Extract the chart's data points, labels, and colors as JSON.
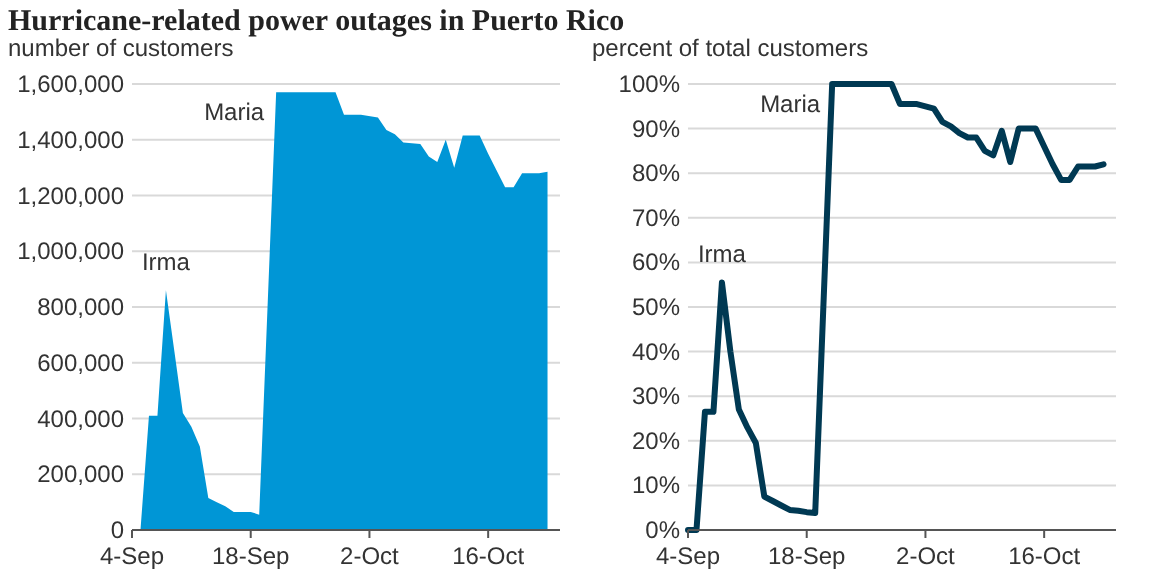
{
  "chart_data": [
    {
      "type": "area",
      "title": "Hurricane-related power outages in Puerto Rico",
      "ylabel": "number of customers",
      "x": [
        "--09-05",
        "--09-06",
        "--09-07",
        "--09-08",
        "--09-09",
        "--09-10",
        "--09-11",
        "--09-12",
        "--09-13",
        "--09-14",
        "--09-15",
        "--09-16",
        "--09-17",
        "--09-18",
        "--09-19",
        "--09-21",
        "--09-28",
        "--09-29",
        "--10-01",
        "--10-03",
        "--10-04",
        "--10-05",
        "--10-06",
        "--10-08",
        "--10-09",
        "--10-10",
        "--10-11",
        "--10-12",
        "--10-13",
        "--10-15",
        "--10-16",
        "--10-17",
        "--10-18",
        "--10-19",
        "--10-20",
        "--10-22",
        "--10-23"
      ],
      "series": [
        {
          "color": "#0096d6",
          "values": [
            0,
            410000,
            410000,
            860000,
            640000,
            420000,
            370000,
            300000,
            115000,
            100000,
            85000,
            65000,
            65000,
            65000,
            55000,
            1570000,
            1570000,
            1490000,
            1490000,
            1480000,
            1435000,
            1420000,
            1390000,
            1385000,
            1340000,
            1320000,
            1400000,
            1300000,
            1415000,
            1415000,
            1350000,
            1290000,
            1230000,
            1230000,
            1280000,
            1280000,
            1285000
          ]
        }
      ],
      "xlim": [
        "--09-04",
        "--10-24"
      ],
      "xticks": [
        {
          "value": "--09-04",
          "label": "4-Sep"
        },
        {
          "value": "--09-18",
          "label": "18-Sep"
        },
        {
          "value": "--10-02",
          "label": "2-Oct"
        },
        {
          "value": "--10-16",
          "label": "16-Oct"
        }
      ],
      "ylim": [
        0,
        1600000
      ],
      "yticks": [
        0,
        {
          "value": 200000,
          "label": "200,000"
        },
        {
          "value": 400000,
          "label": "400,000"
        },
        {
          "value": 600000,
          "label": "600,000"
        },
        {
          "value": 800000,
          "label": "800,000"
        },
        {
          "value": 1000000,
          "label": "1,000,000"
        },
        {
          "value": 1200000,
          "label": "1,200,000"
        },
        {
          "value": 1400000,
          "label": "1,400,000"
        },
        {
          "value": 1600000,
          "label": "1,600,000"
        }
      ],
      "grid": "y",
      "annotations": [
        {
          "text": "Irma",
          "x": "--09-08",
          "y": 860000
        },
        {
          "text": "Maria",
          "x": "--09-21",
          "y": 1570000
        }
      ]
    },
    {
      "type": "line",
      "ylabel": "percent of total customers",
      "x": [
        "--09-04",
        "--09-05",
        "--09-06",
        "--09-07",
        "--09-08",
        "--09-09",
        "--09-10",
        "--09-11",
        "--09-12",
        "--09-13",
        "--09-14",
        "--09-15",
        "--09-16",
        "--09-17",
        "--09-18",
        "--09-19",
        "--09-21",
        "--09-28",
        "--09-29",
        "--10-01",
        "--10-02",
        "--10-03",
        "--10-04",
        "--10-05",
        "--10-06",
        "--10-07",
        "--10-08",
        "--10-09",
        "--10-10",
        "--10-11",
        "--10-12",
        "--10-13",
        "--10-15",
        "--10-16",
        "--10-17",
        "--10-18",
        "--10-19",
        "--10-20",
        "--10-22",
        "--10-23"
      ],
      "series": [
        {
          "color": "#003953",
          "values": [
            0,
            0,
            26.5,
            26.5,
            55.5,
            40,
            27,
            23,
            19.5,
            7.5,
            6.5,
            5.5,
            4.5,
            4.3,
            4,
            3.8,
            100,
            100,
            95.5,
            95.5,
            95,
            94.5,
            91.5,
            90.5,
            89,
            88,
            88,
            85,
            84,
            89.5,
            82.5,
            90,
            90,
            86,
            82,
            78.5,
            78.5,
            81.5,
            81.5,
            82
          ]
        }
      ],
      "xlim": [
        "--09-04",
        "--10-24"
      ],
      "xticks": [
        {
          "value": "--09-04",
          "label": "4-Sep"
        },
        {
          "value": "--09-18",
          "label": "18-Sep"
        },
        {
          "value": "--10-02",
          "label": "2-Oct"
        },
        {
          "value": "--10-16",
          "label": "16-Oct"
        }
      ],
      "ylim": [
        0,
        100
      ],
      "yticks": [
        {
          "value": 0,
          "label": "0%"
        },
        {
          "value": 10,
          "label": "10%"
        },
        {
          "value": 20,
          "label": "20%"
        },
        {
          "value": 30,
          "label": "30%"
        },
        {
          "value": 40,
          "label": "40%"
        },
        {
          "value": 50,
          "label": "50%"
        },
        {
          "value": 60,
          "label": "60%"
        },
        {
          "value": 70,
          "label": "70%"
        },
        {
          "value": 80,
          "label": "80%"
        },
        {
          "value": 90,
          "label": "90%"
        },
        {
          "value": 100,
          "label": "100%"
        }
      ],
      "grid": "y",
      "marker": "none",
      "line_style": "solid",
      "annotations": [
        {
          "text": "Irma",
          "x": "--09-08",
          "y": 55.5
        },
        {
          "text": "Maria",
          "x": "--09-21",
          "y": 100
        }
      ]
    }
  ]
}
